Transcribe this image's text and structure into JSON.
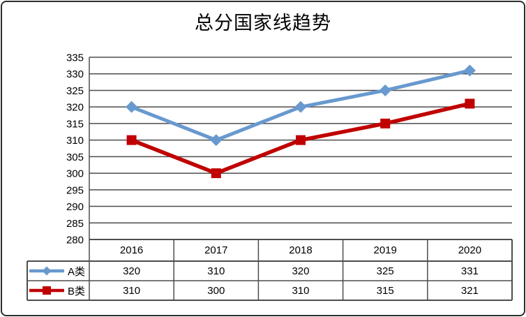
{
  "title": "总分国家线趋势",
  "colors": {
    "series_a": "#6899CF",
    "series_b": "#C00000",
    "gridline": "#4d4d4d",
    "table_border": "#4d4d4d",
    "frame_border": "#2e2e2e",
    "text": "#000000"
  },
  "chart_data": {
    "type": "line",
    "title": "总分国家线趋势",
    "categories": [
      "2016",
      "2017",
      "2018",
      "2019",
      "2020"
    ],
    "series": [
      {
        "name": "A类",
        "marker": "diamond",
        "color": "#6899CF",
        "values": [
          320,
          310,
          320,
          325,
          331
        ]
      },
      {
        "name": "B类",
        "marker": "square",
        "color": "#C00000",
        "values": [
          310,
          300,
          310,
          315,
          321
        ]
      }
    ],
    "ylim": [
      280,
      335
    ],
    "ytick_step": 5,
    "yticks": [
      280,
      285,
      290,
      295,
      300,
      305,
      310,
      315,
      320,
      325,
      330,
      335
    ],
    "grid": true,
    "legend_position": "data-table-left",
    "xlabel": "",
    "ylabel": ""
  }
}
